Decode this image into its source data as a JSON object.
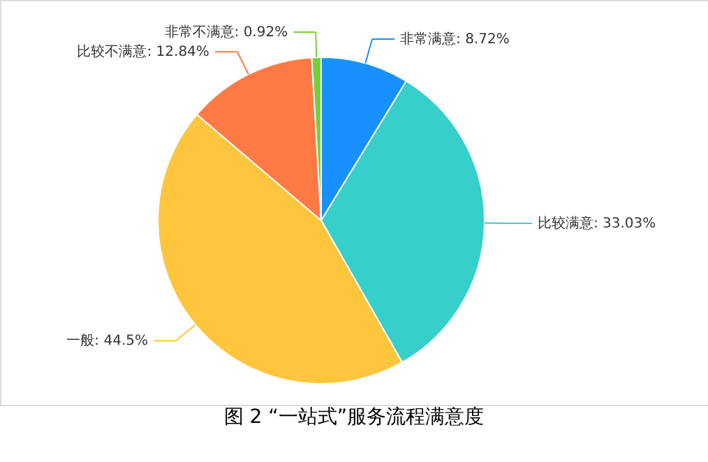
{
  "chart_data": {
    "type": "pie",
    "title": "图 2 “一站式”服务流程满意度",
    "categories": [
      "非常满意",
      "比较满意",
      "一般",
      "比较不满意",
      "非常不满意"
    ],
    "values": [
      8.72,
      33.03,
      44.5,
      12.84,
      0.92
    ],
    "colors": [
      "#1890ff",
      "#36cfc9",
      "#ffc53d",
      "#ff7a45",
      "#73d13d"
    ],
    "value_labels": [
      "8.72%",
      "33.03%",
      "44.5%",
      "12.84%",
      "0.92%"
    ]
  }
}
